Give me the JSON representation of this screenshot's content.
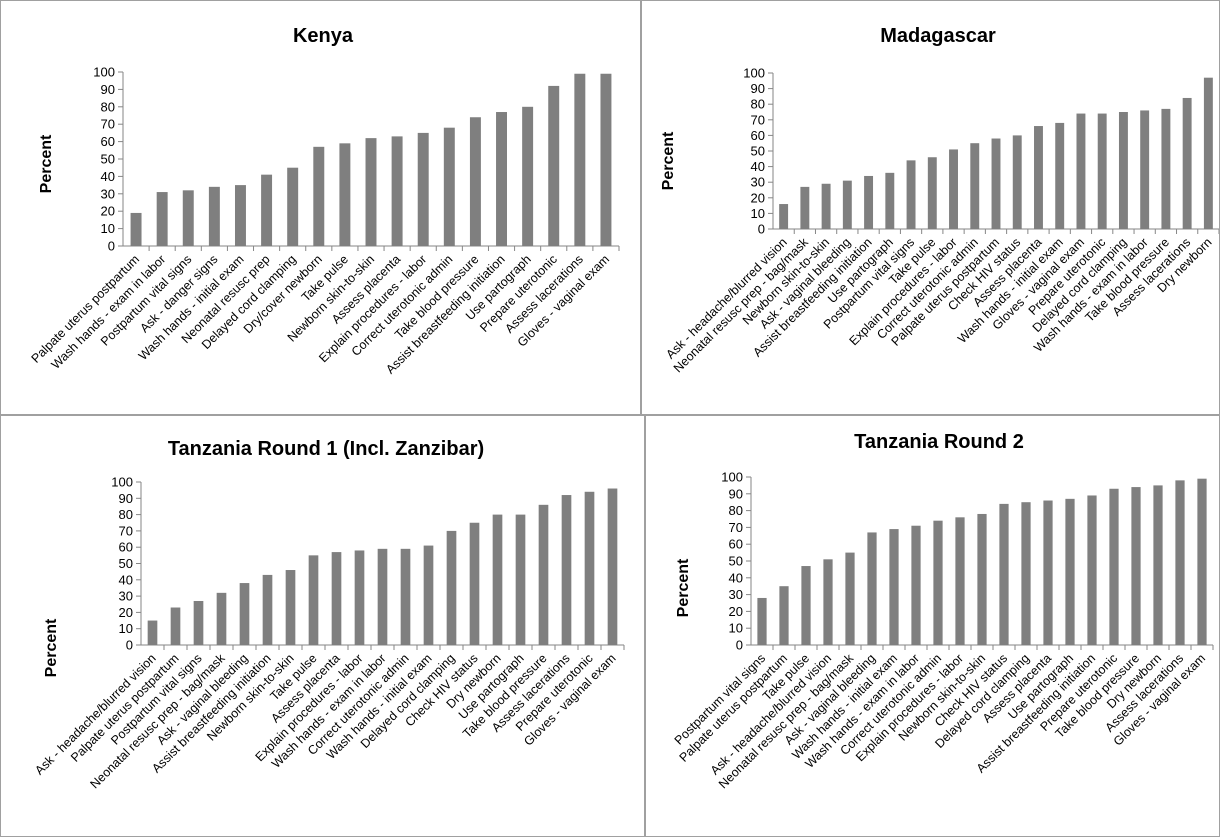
{
  "chart_data": [
    {
      "type": "bar",
      "title": "Kenya",
      "ylabel": "Percent",
      "xlabel": "",
      "ylim": [
        0,
        100
      ],
      "ytick_step": 10,
      "grid": false,
      "legend": "none",
      "bar_color": "#7f7f7f",
      "categories": [
        "Palpate uterus postpartum",
        "Wash hands - exam in labor",
        "Postpartum vital signs",
        "Ask - danger signs",
        "Wash hands - initial exam",
        "Neonatal resusc prep",
        "Delayed cord clamping",
        "Dry/cover newborn",
        "Take pulse",
        "Newborn skin-to-skin",
        "Assess placenta",
        "Explain procedures - labor",
        "Correct uterotonic admin",
        "Take blood pressure",
        "Assist breastfeeding initiation",
        "Use partograph",
        "Prepare uterotonic",
        "Assess lacerations",
        "Gloves - vaginal exam"
      ],
      "values": [
        19,
        31,
        32,
        34,
        35,
        41,
        45,
        57,
        59,
        62,
        63,
        65,
        68,
        74,
        77,
        80,
        92,
        99,
        99
      ]
    },
    {
      "type": "bar",
      "title": "Madagascar",
      "ylabel": "Percent",
      "xlabel": "",
      "ylim": [
        0,
        100
      ],
      "ytick_step": 10,
      "grid": false,
      "legend": "none",
      "bar_color": "#7f7f7f",
      "categories": [
        "Ask - headache/blurred vision",
        "Neonatal resusc prep - bag/mask",
        "Newborn skin-to-skin",
        "Ask - vaginal bleeding",
        "Assist breastfeeding initiation",
        "Use partograph",
        "Postpartum vital signs",
        "Take pulse",
        "Explain procedures - labor",
        "Correct uterotonic admin",
        "Palpate uterus postpartum",
        "Check HIV status",
        "Assess placenta",
        "Wash hands - initial exam",
        "Gloves - vaginal exam",
        "Prepare uterotonic",
        "Delayed cord clamping",
        "Wash hands - exam in labor",
        "Take blood pressure",
        "Assess lacerations",
        "Dry newborn"
      ],
      "values": [
        16,
        27,
        29,
        31,
        34,
        36,
        44,
        46,
        51,
        55,
        58,
        60,
        66,
        68,
        74,
        74,
        75,
        76,
        77,
        84,
        97
      ]
    },
    {
      "type": "bar",
      "title": "Tanzania Round 1 (Incl. Zanzibar)",
      "ylabel": "Percent",
      "xlabel": "",
      "ylim": [
        0,
        100
      ],
      "ytick_step": 10,
      "grid": false,
      "legend": "none",
      "bar_color": "#7f7f7f",
      "categories": [
        "Ask - headache/blurred vision",
        "Palpate uterus postpartum",
        "Postpartum vital signs",
        "Neonatal resusc prep - bag/mask",
        "Ask - vaginal bleeding",
        "Assist breastfeeding initiation",
        "Newborn skin-to-skin",
        "Take pulse",
        "Assess placenta",
        "Explain procedures - labor",
        "Wash hands - exam in labor",
        "Correct uterotonic admin",
        "Wash hands - initial exam",
        "Delayed cord clamping",
        "Check HIV status",
        "Dry newborn",
        "Use partograph",
        "Take blood pressure",
        "Assess lacerations",
        "Prepare uterotonic",
        "Gloves - vaginal exam"
      ],
      "values": [
        15,
        23,
        27,
        32,
        38,
        43,
        46,
        55,
        57,
        58,
        59,
        59,
        61,
        70,
        75,
        80,
        80,
        86,
        92,
        94,
        96
      ]
    },
    {
      "type": "bar",
      "title": "Tanzania Round 2",
      "ylabel": "Percent",
      "xlabel": "",
      "ylim": [
        0,
        100
      ],
      "ytick_step": 10,
      "grid": false,
      "legend": "none",
      "bar_color": "#7f7f7f",
      "categories": [
        "Postpartum vital signs",
        "Palpate uterus postpartum",
        "Take pulse",
        "Ask - headache/blurred vision",
        "Neonatal resusc prep - bag/mask",
        "Ask - vaginal bleeding",
        "Wash hands - initial exam",
        "Wash hands - exam in labor",
        "Correct uterotonic admin",
        "Explain procedures - labor",
        "Newborn skin-to-skin",
        "Check HIV status",
        "Delayed cord clamping",
        "Assess placenta",
        "Use partograph",
        "Assist breastfeeding initiation",
        "Prepare uterotonic",
        "Take blood pressure",
        "Dry newborn",
        "Assess lacerations",
        "Gloves - vaginal exam"
      ],
      "values": [
        28,
        35,
        47,
        51,
        55,
        67,
        69,
        71,
        74,
        76,
        78,
        84,
        85,
        86,
        87,
        89,
        93,
        94,
        95,
        98,
        99
      ]
    }
  ]
}
